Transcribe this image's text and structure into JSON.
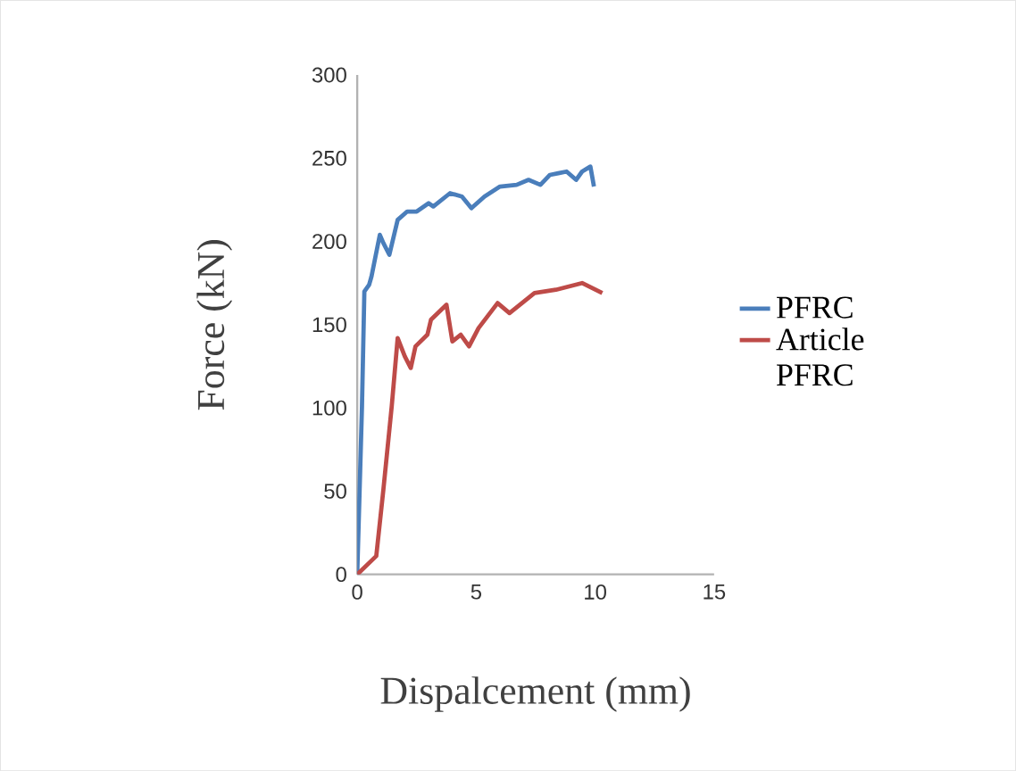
{
  "chart_data": {
    "type": "line",
    "xlabel": "Dispalcement (mm)",
    "ylabel": "Force (kN)",
    "xlim": [
      0,
      15
    ],
    "xticks": [
      0,
      5,
      10,
      15
    ],
    "ylim": [
      0,
      300
    ],
    "yticks": [
      0,
      50,
      100,
      150,
      200,
      250,
      300
    ],
    "grid": false,
    "legend": "right",
    "marker": "none",
    "series": [
      {
        "name": "PFRC",
        "color": "#4a7ebb",
        "x": [
          0,
          0.2,
          0.3,
          0.5,
          0.6,
          0.95,
          1.1,
          1.35,
          1.7,
          2.1,
          2.5,
          3.0,
          3.2,
          3.9,
          4.4,
          4.8,
          5.35,
          6.0,
          6.7,
          7.2,
          7.7,
          8.1,
          8.45,
          8.8,
          9.2,
          9.45,
          9.8,
          9.95
        ],
        "values": [
          0,
          101,
          170,
          174,
          179,
          204,
          199,
          192,
          213,
          218,
          218,
          223,
          221,
          229,
          227,
          220,
          227,
          233,
          234,
          237,
          234,
          240,
          241,
          242,
          237,
          242,
          245,
          233
        ]
      },
      {
        "name": "Article PFRC",
        "color": "#be4b48",
        "x": [
          0,
          0.8,
          1.1,
          1.45,
          1.7,
          2.0,
          2.25,
          2.45,
          2.95,
          3.1,
          3.75,
          4.0,
          4.35,
          4.7,
          5.1,
          5.9,
          6.4,
          7.45,
          8.35,
          9.45,
          10.3
        ],
        "values": [
          0,
          11,
          51,
          101,
          142,
          131,
          124,
          137,
          144,
          153,
          162,
          140,
          144,
          137,
          148,
          163,
          157,
          169,
          171,
          175,
          169
        ]
      }
    ]
  }
}
